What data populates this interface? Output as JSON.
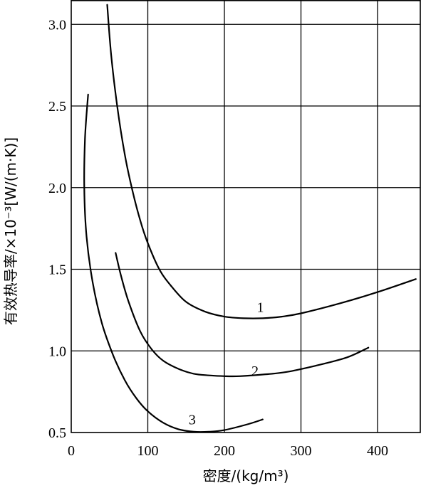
{
  "chart_data": {
    "type": "line",
    "title": "",
    "xlabel": "密度/(kg/m³)",
    "ylabel": "有效热导率/×10⁻³[W/(m·K)]",
    "xlim": [
      0,
      450
    ],
    "ylim": [
      0.5,
      3.2
    ],
    "xticks": [
      0,
      100,
      200,
      300,
      400
    ],
    "yticks": [
      0.5,
      1.0,
      1.5,
      2.0,
      2.5,
      3.0
    ],
    "grid": true,
    "series": [
      {
        "name": "1",
        "x": [
          47,
          52,
          60,
          70,
          80,
          90,
          100,
          115,
          130,
          150,
          175,
          200,
          225,
          250,
          275,
          300,
          350,
          400,
          450
        ],
        "y": [
          3.12,
          2.82,
          2.5,
          2.2,
          1.98,
          1.8,
          1.66,
          1.5,
          1.4,
          1.3,
          1.24,
          1.21,
          1.2,
          1.2,
          1.21,
          1.23,
          1.29,
          1.36,
          1.44
        ]
      },
      {
        "name": "2",
        "x": [
          58,
          65,
          75,
          90,
          105,
          120,
          140,
          160,
          180,
          200,
          220,
          250,
          280,
          320,
          360,
          388
        ],
        "y": [
          1.6,
          1.46,
          1.3,
          1.12,
          1.01,
          0.94,
          0.89,
          0.86,
          0.85,
          0.845,
          0.845,
          0.855,
          0.87,
          0.91,
          0.96,
          1.02
        ]
      },
      {
        "name": "3",
        "x": [
          22,
          18,
          17,
          20,
          28,
          40,
          55,
          70,
          85,
          100,
          120,
          140,
          160,
          180,
          200,
          230,
          250
        ],
        "y": [
          2.57,
          2.3,
          2.0,
          1.7,
          1.42,
          1.17,
          0.97,
          0.82,
          0.71,
          0.63,
          0.56,
          0.52,
          0.505,
          0.505,
          0.515,
          0.55,
          0.58
        ]
      }
    ],
    "curve_labels": [
      {
        "text": "1",
        "x": 247,
        "y": 1.27
      },
      {
        "text": "2",
        "x": 240,
        "y": 0.88
      },
      {
        "text": "3",
        "x": 158,
        "y": 0.58
      }
    ]
  }
}
